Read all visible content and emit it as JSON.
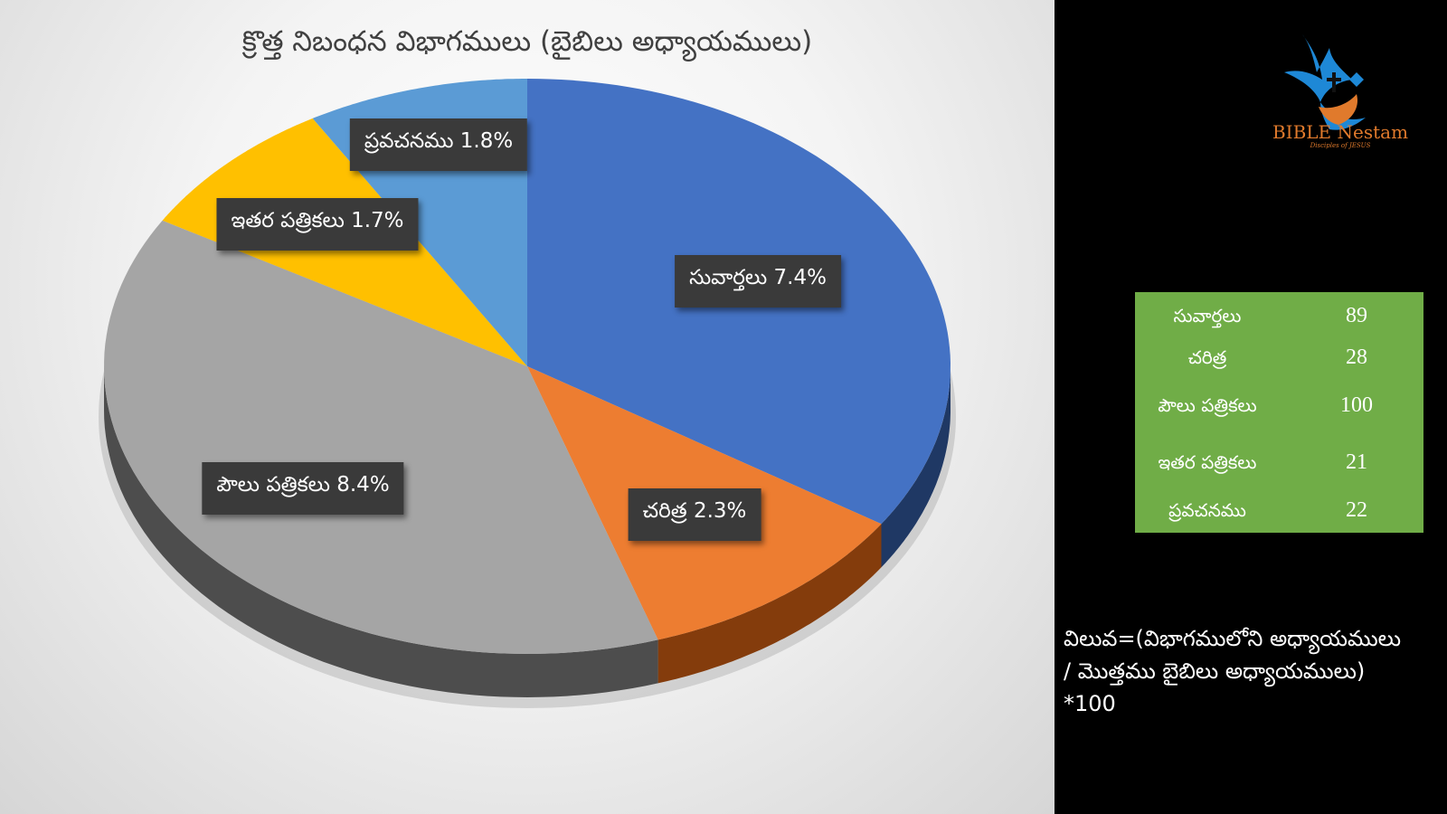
{
  "chart_data": {
    "type": "pie",
    "title": "క్రొత్త నిబంధన విభాగములు (బైబిలు అధ్యాయములు)",
    "categories": [
      "సువార్తలు",
      "చరిత్ర",
      "పౌలు పత్రికలు",
      "ఇతర పత్రికలు",
      "ప్రవచనము"
    ],
    "values": [
      89,
      28,
      100,
      21,
      22
    ],
    "data_labels": [
      "సువార్తలు 7.4%",
      "చరిత్ర 2.3%",
      "పౌలు పత్రికలు 8.4%",
      "ఇతర పత్రికలు 1.7%",
      "ప్రవచనము 1.8%"
    ],
    "colors": [
      "#4472c4",
      "#ed7d31",
      "#a5a5a5",
      "#ffc000",
      "#5b9bd5"
    ],
    "side_colors": [
      "#1f3864",
      "#843c0c",
      "#4d4d4d",
      "#7f6000",
      "#2e5c8a"
    ],
    "legend": "none",
    "style": "3d"
  },
  "table": {
    "rows": [
      {
        "name": "సువార్తలు",
        "value": "89"
      },
      {
        "name": "చరిత్ర",
        "value": "28"
      },
      {
        "name": "పౌలు పత్రికలు",
        "value": "100"
      },
      {
        "name": "ఇతర పత్రికలు",
        "value": "21"
      },
      {
        "name": "ప్రవచనము",
        "value": "22"
      }
    ]
  },
  "formula": {
    "line1": "విలువ=(విభాగములోని అధ్యాయములు",
    "line2": "/ మొత్తము బైబిలు అధ్యాయములు)",
    "line3": "*100"
  },
  "logo": {
    "name": "BIBLE Nestam",
    "tagline": "Disciples of JESUS",
    "colors": {
      "dove": "#1e88d6",
      "text": "#e07a2c"
    }
  }
}
